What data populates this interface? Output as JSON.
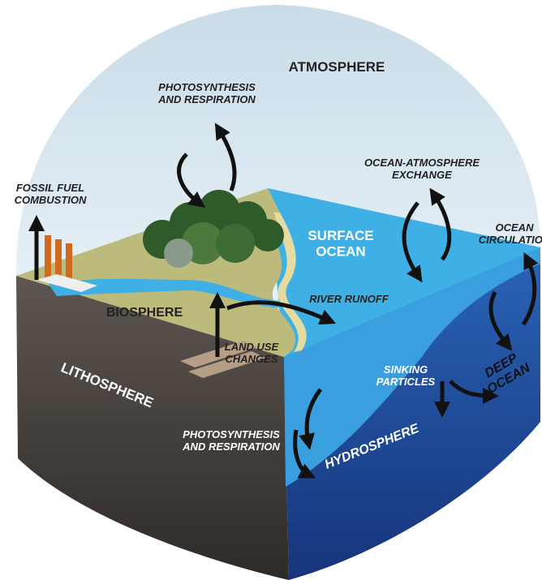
{
  "labels": [
    {
      "lines": [
        "ATMOSPHERE"
      ]
    },
    {
      "lines": [
        "PHOTOSYNTHESIS",
        "AND RESPIRATION"
      ]
    },
    {
      "lines": [
        "FOSSIL FUEL",
        "COMBUSTION"
      ]
    },
    {
      "lines": [
        "OCEAN-ATMOSPHERE",
        "EXCHANGE"
      ]
    },
    {
      "lines": [
        "OCEAN",
        "CIRCULATION"
      ]
    },
    {
      "lines": [
        "SURFACE",
        "OCEAN"
      ]
    },
    {
      "lines": [
        "BIOSPHERE"
      ]
    },
    {
      "lines": [
        "RIVER RUNOFF"
      ]
    },
    {
      "lines": [
        "LAND USE",
        "CHANGES"
      ]
    },
    {
      "lines": [
        "LITHOSPHERE"
      ]
    },
    {
      "lines": [
        "SINKING",
        "PARTICLES"
      ]
    },
    {
      "lines": [
        "DEEP",
        "OCEAN"
      ]
    },
    {
      "lines": [
        "HYDROSPHERE"
      ]
    },
    {
      "lines": [
        "PHOTOSYNTHESIS",
        "AND RESPIRATION"
      ]
    }
  ]
}
